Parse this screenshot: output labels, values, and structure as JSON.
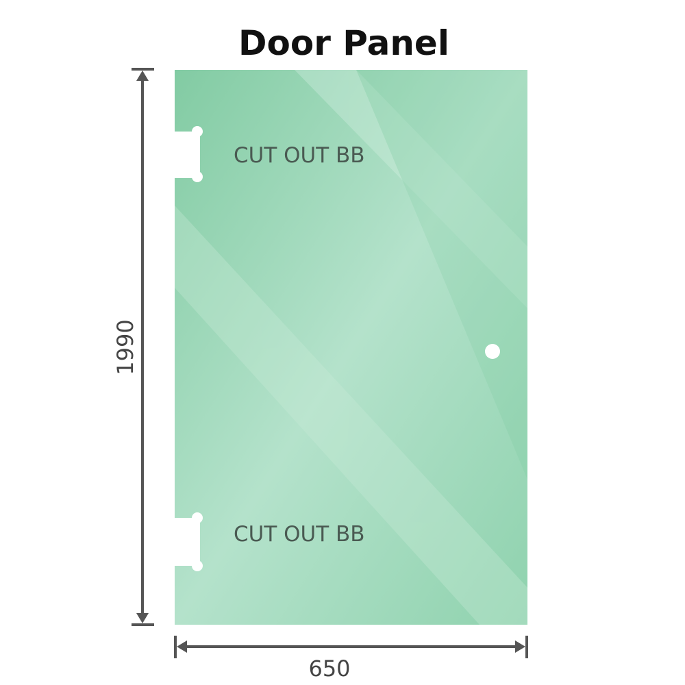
{
  "title": "Door Panel",
  "cutouts": [
    {
      "label": "CUT OUT BB"
    },
    {
      "label": "CUT OUT BB"
    }
  ],
  "dimensions": {
    "height": "1990",
    "width": "650"
  },
  "colors": {
    "glass": "#8fd0ad",
    "glass_light": "#b6e2cc",
    "dimension_line": "#555555"
  }
}
